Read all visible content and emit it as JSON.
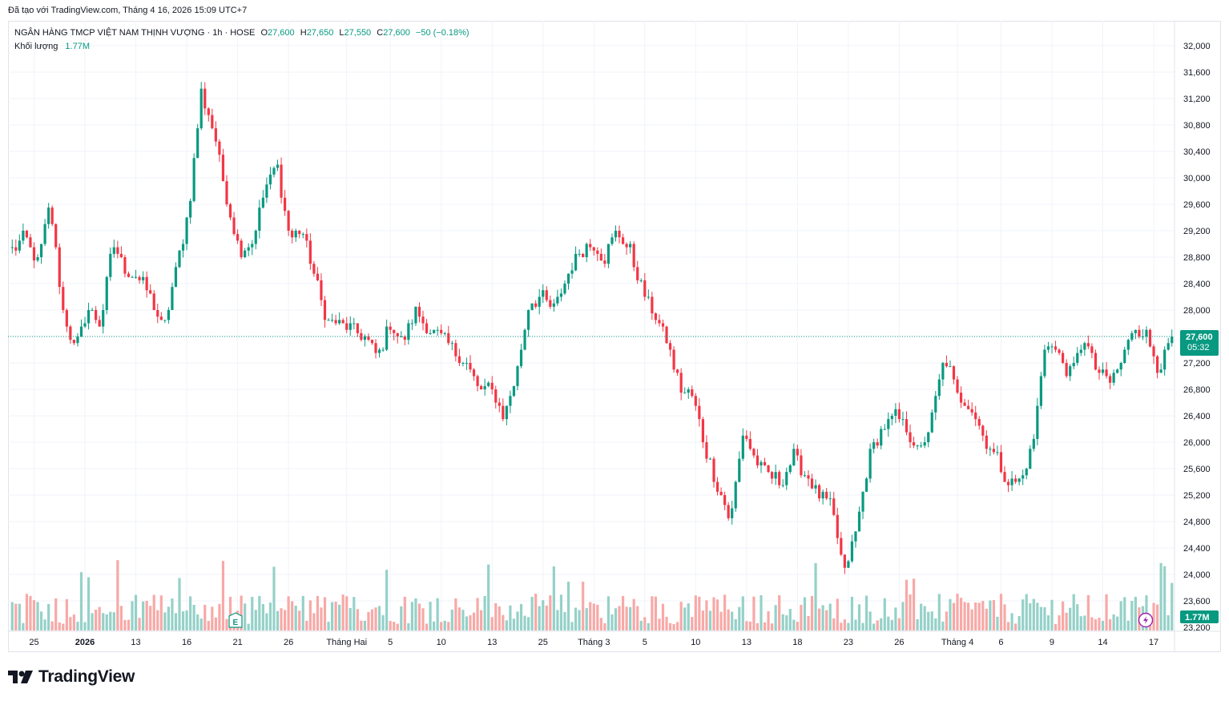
{
  "caption": "Đã tạo với TradingView.com, Tháng 4 16, 2026 15:09 UTC+7",
  "legend": {
    "symbol": "NGÂN HÀNG TMCP VIỆT NAM THỊNH VƯỢNG · 1h · HOSE",
    "o_label": "O",
    "o_value": "27,600",
    "h_label": "H",
    "h_value": "27,650",
    "l_label": "L",
    "l_value": "27,550",
    "c_label": "C",
    "c_value": "27,600",
    "change": "−50 (−0.18%)",
    "volume_label": "Khối lượng",
    "volume_value": "1.77M"
  },
  "price_badge": {
    "price": "27,600",
    "countdown": "05:32"
  },
  "volume_badge": "1.77M",
  "earnings_marker": "E",
  "logo_text": "TradingView",
  "colors": {
    "up": "#089981",
    "down": "#F23645",
    "vol_up": "#95D1C8",
    "vol_down": "#F7A9A7",
    "grid": "#F0F3FA"
  },
  "chart_data": {
    "type": "candlestick",
    "title": "NGÂN HÀNG TMCP VIỆT NAM THỊNH VƯỢNG · 1h · HOSE",
    "ylim": [
      23200,
      32000
    ],
    "y_ticks": [
      "32,000",
      "31,600",
      "31,200",
      "30,800",
      "30,400",
      "30,000",
      "29,600",
      "29,200",
      "28,800",
      "28,400",
      "28,000",
      "27,600",
      "27,200",
      "26,800",
      "26,400",
      "26,000",
      "25,600",
      "25,200",
      "24,800",
      "24,400",
      "24,000",
      "23,600",
      "23,200"
    ],
    "x_ticks": [
      "25",
      "2026",
      "13",
      "16",
      "21",
      "26",
      "Tháng Hai",
      "5",
      "10",
      "13",
      "25",
      "Tháng 3",
      "5",
      "10",
      "13",
      "18",
      "23",
      "26",
      "Tháng 4",
      "6",
      "9",
      "14",
      "17"
    ],
    "x_tick_index": [
      6,
      20,
      34,
      48,
      62,
      76,
      92,
      104,
      118,
      132,
      146,
      160,
      174,
      188,
      202,
      216,
      230,
      244,
      260,
      272,
      286,
      300,
      314
    ],
    "last_price": 27600,
    "close_path": [
      28900,
      29100,
      28700,
      29600,
      28000,
      27400,
      28000,
      27800,
      29000,
      28600,
      28500,
      28200,
      27700,
      28600,
      29500,
      31300,
      30700,
      29700,
      28900,
      29000,
      29800,
      30200,
      29100,
      29200,
      28500,
      27800,
      27800,
      27700,
      27600,
      27300,
      27800,
      27500,
      28000,
      27700,
      27600,
      27400,
      27200,
      26800,
      26800,
      26400,
      27000,
      28100,
      28200,
      28000,
      28500,
      28900,
      29000,
      28800,
      29200,
      28900,
      28300,
      27900,
      27500,
      26800,
      26700,
      25900,
      25300,
      24800,
      26200,
      25700,
      25500,
      25400,
      25800,
      25500,
      25200,
      25000,
      24000,
      24700,
      25800,
      26200,
      26400,
      26200,
      25800,
      26400,
      27300,
      26700,
      26600,
      26100,
      25800,
      25400,
      25400,
      26000,
      27600,
      27300,
      27000,
      27600,
      27100,
      26900,
      27200,
      27800,
      27600,
      27100,
      27600
    ],
    "series_count": 320
  }
}
